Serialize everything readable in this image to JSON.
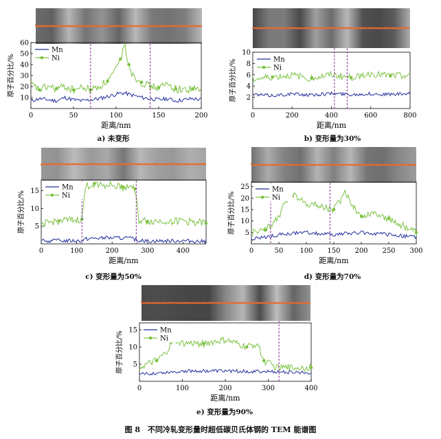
{
  "figure_caption": "图 8　不同冷轧变形量时超低碳贝氏体钢的 TEM 能谱图",
  "colors": {
    "mn": "#1f2f9c",
    "ni": "#7cc242",
    "scan_line": "#ea6a2a",
    "marker": "#8a2d9a"
  },
  "panels": [
    {
      "id": "a",
      "caption": "a) 未变形"
    },
    {
      "id": "b",
      "caption": "b) 变形量为30%"
    },
    {
      "id": "c",
      "caption": "c) 变形量为50%"
    },
    {
      "id": "d",
      "caption": "d) 变形量为70%"
    },
    {
      "id": "e",
      "caption": "e) 变形量为90%"
    }
  ],
  "chart_data": [
    {
      "type": "line",
      "panel": "a",
      "xlabel": "距离/nm",
      "ylabel": "原子百分比/%",
      "xlim": [
        0,
        200
      ],
      "ylim": [
        0,
        60
      ],
      "xticks": [
        0,
        50,
        100,
        150,
        200
      ],
      "yticks": [
        10,
        20,
        30,
        40,
        50,
        60
      ],
      "legend": "top-left",
      "boundary_lines_x": [
        70,
        140
      ],
      "series": [
        {
          "name": "Mn",
          "x": [
            0,
            10,
            20,
            30,
            40,
            50,
            60,
            70,
            80,
            90,
            100,
            105,
            110,
            115,
            120,
            130,
            140,
            150,
            160,
            170,
            180,
            190,
            200
          ],
          "y": [
            7,
            9,
            8,
            7,
            10,
            8,
            7,
            8,
            9,
            11,
            13,
            14,
            14,
            13,
            12,
            10,
            9,
            8,
            9,
            7,
            8,
            9,
            8
          ]
        },
        {
          "name": "Ni",
          "x": [
            0,
            10,
            20,
            30,
            40,
            50,
            60,
            70,
            80,
            90,
            100,
            105,
            110,
            115,
            120,
            130,
            140,
            150,
            160,
            170,
            180,
            190,
            200
          ],
          "y": [
            22,
            17,
            20,
            18,
            20,
            17,
            19,
            17,
            20,
            25,
            35,
            45,
            58,
            40,
            30,
            24,
            20,
            19,
            22,
            18,
            17,
            18,
            16
          ]
        }
      ]
    },
    {
      "type": "line",
      "panel": "b",
      "xlabel": "距离/nm",
      "ylabel": "原子百分比/%",
      "xlim": [
        0,
        800
      ],
      "ylim": [
        0,
        10
      ],
      "xticks": [
        0,
        200,
        400,
        600,
        800
      ],
      "yticks": [
        2,
        4,
        6,
        8,
        10
      ],
      "legend": "top-left",
      "boundary_lines_x": [
        415,
        480
      ],
      "series": [
        {
          "name": "Mn",
          "x": [
            0,
            100,
            200,
            300,
            400,
            500,
            600,
            700,
            800
          ],
          "y": [
            2.5,
            2.3,
            2.6,
            2.4,
            2.7,
            2.5,
            2.6,
            2.5,
            2.6
          ]
        },
        {
          "name": "Ni",
          "x": [
            0,
            100,
            200,
            300,
            400,
            500,
            600,
            700,
            800
          ],
          "y": [
            5.2,
            5.6,
            5.9,
            5.4,
            6.0,
            5.5,
            6.2,
            5.8,
            5.9
          ]
        }
      ]
    },
    {
      "type": "line",
      "panel": "c",
      "xlabel": "距离/nm",
      "ylabel": "原子百分比/%",
      "xlim": [
        0,
        465
      ],
      "ylim": [
        0,
        18
      ],
      "xticks": [
        0,
        100,
        200,
        300,
        400
      ],
      "yticks": [
        5,
        10,
        15
      ],
      "legend": "top-left",
      "boundary_lines_x": [
        115,
        268
      ],
      "series": [
        {
          "name": "Mn",
          "x": [
            0,
            50,
            100,
            115,
            125,
            150,
            200,
            250,
            265,
            275,
            300,
            400,
            465
          ],
          "y": [
            0.8,
            0.9,
            0.9,
            0.9,
            1.4,
            1.6,
            1.7,
            1.6,
            1.3,
            0.9,
            0.8,
            0.9,
            0.7
          ]
        },
        {
          "name": "Ni",
          "x": [
            0,
            50,
            100,
            115,
            125,
            150,
            200,
            230,
            250,
            265,
            275,
            300,
            400,
            465
          ],
          "y": [
            5.5,
            6.5,
            6.6,
            7.0,
            16.0,
            17.0,
            16.5,
            16.0,
            16.2,
            15.5,
            6.5,
            6.3,
            6.5,
            5.8
          ]
        }
      ]
    },
    {
      "type": "line",
      "panel": "d",
      "xlabel": "距离/nm",
      "ylabel": "原子百分比/%",
      "xlim": [
        0,
        300
      ],
      "ylim": [
        0,
        27
      ],
      "xticks": [
        0,
        50,
        100,
        150,
        200,
        250,
        300
      ],
      "yticks": [
        5,
        10,
        15,
        20,
        25
      ],
      "legend": "top-left",
      "boundary_lines_x": [
        35,
        143
      ],
      "series": [
        {
          "name": "Mn",
          "x": [
            0,
            50,
            100,
            150,
            200,
            250,
            300
          ],
          "y": [
            2,
            4,
            5,
            4,
            5,
            4,
            3
          ]
        },
        {
          "name": "Ni",
          "x": [
            0,
            25,
            50,
            70,
            100,
            150,
            170,
            200,
            225,
            250,
            275,
            300
          ],
          "y": [
            5,
            6,
            12,
            22,
            18,
            15,
            22,
            12,
            14,
            11,
            8,
            5
          ]
        }
      ]
    },
    {
      "type": "line",
      "panel": "e",
      "xlabel": "距离/nm",
      "ylabel": "原子百分比/%",
      "xlim": [
        0,
        400
      ],
      "ylim": [
        0,
        17
      ],
      "xticks": [
        0,
        100,
        200,
        300,
        400
      ],
      "yticks": [
        5,
        10,
        15
      ],
      "legend": "top-left",
      "boundary_lines_x": [
        325
      ],
      "series": [
        {
          "name": "Mn",
          "x": [
            0,
            50,
            100,
            200,
            300,
            400
          ],
          "y": [
            2,
            2.5,
            3,
            3,
            2.8,
            2.5
          ]
        },
        {
          "name": "Ni",
          "x": [
            0,
            40,
            60,
            80,
            100,
            150,
            200,
            250,
            275,
            290,
            320,
            400
          ],
          "y": [
            4,
            6,
            8,
            12,
            11,
            11,
            12,
            10,
            11,
            6,
            4,
            4
          ]
        }
      ]
    }
  ]
}
